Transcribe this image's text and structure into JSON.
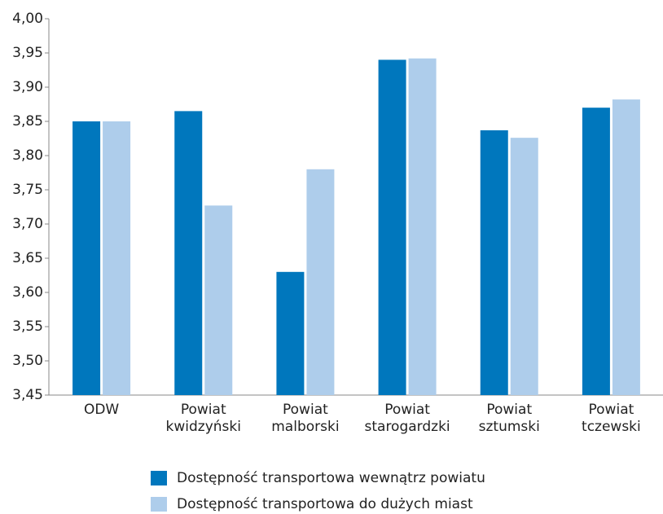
{
  "chart_data": {
    "type": "bar",
    "categories": [
      "ODW",
      "Powiat kwidzyński",
      "Powiat malborski",
      "Powiat starogardzki",
      "Powiat sztumski",
      "Powiat tczewski"
    ],
    "series": [
      {
        "name": "Dostępność transportowa wewnątrz powiatu",
        "color": "#0077bd",
        "values": [
          3.85,
          3.865,
          3.63,
          3.94,
          3.837,
          3.87
        ]
      },
      {
        "name": "Dostępność transportowa do dużych miast",
        "color": "#aecdeb",
        "values": [
          3.85,
          3.727,
          3.78,
          3.942,
          3.826,
          3.882
        ]
      }
    ],
    "ylim": [
      3.45,
      4.0
    ],
    "yticks": [
      {
        "value": 3.45,
        "label": "3,45"
      },
      {
        "value": 3.5,
        "label": "3,50"
      },
      {
        "value": 3.55,
        "label": "3,55"
      },
      {
        "value": 3.6,
        "label": "3,60"
      },
      {
        "value": 3.65,
        "label": "3,65"
      },
      {
        "value": 3.7,
        "label": "3,70"
      },
      {
        "value": 3.75,
        "label": "3,75"
      },
      {
        "value": 3.8,
        "label": "3,80"
      },
      {
        "value": 3.85,
        "label": "3,85"
      },
      {
        "value": 3.9,
        "label": "3,90"
      },
      {
        "value": 3.95,
        "label": "3,95"
      },
      {
        "value": 4.0,
        "label": "4,00"
      }
    ],
    "grid": false
  }
}
